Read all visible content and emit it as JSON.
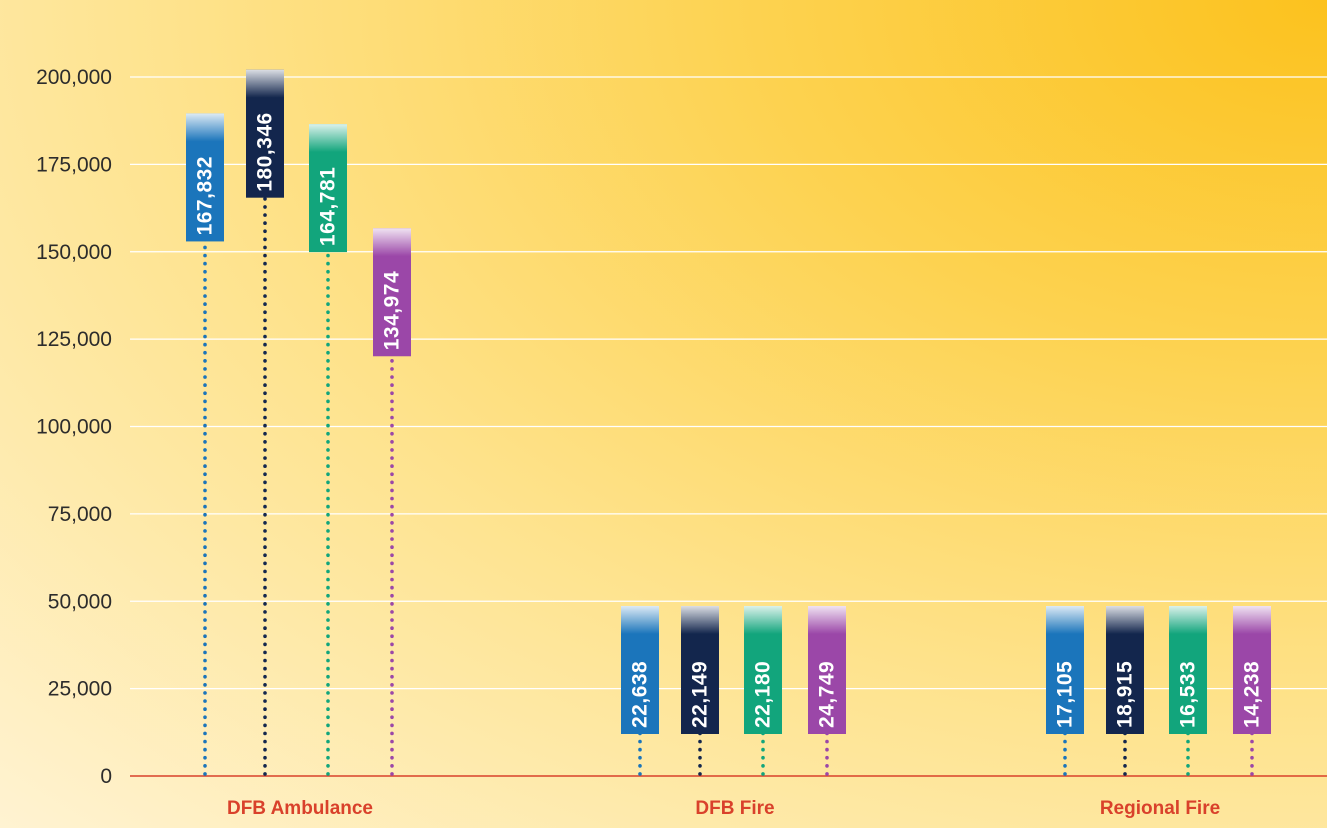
{
  "chart_data": {
    "type": "bar",
    "categories": [
      "DFB Ambulance",
      "DFB Fire",
      "Regional Fire"
    ],
    "series": [
      {
        "values": [
          167832,
          22638,
          17105
        ],
        "color": "#1b75bb"
      },
      {
        "values": [
          180346,
          22149,
          18915
        ],
        "color": "#13264d"
      },
      {
        "values": [
          164781,
          22180,
          16533
        ],
        "color": "#12a57c"
      },
      {
        "values": [
          134974,
          24749,
          14238
        ],
        "color": "#9b47a8"
      }
    ],
    "value_labels": [
      [
        "167,832",
        "22,638",
        "17,105"
      ],
      [
        "180,346",
        "22,149",
        "18,915"
      ],
      [
        "164,781",
        "22,180",
        "16,533"
      ],
      [
        "134,974",
        "24,749",
        "14,238"
      ]
    ],
    "yticks": [
      "0",
      "25,000",
      "50,000",
      "75,000",
      "100,000",
      "125,000",
      "150,000",
      "175,000",
      "200,000"
    ],
    "ylim": [
      0,
      200000
    ],
    "grid": true,
    "axis_color": "#d9412b",
    "grid_color": "#ffffff",
    "label_color": "#d9412b"
  }
}
